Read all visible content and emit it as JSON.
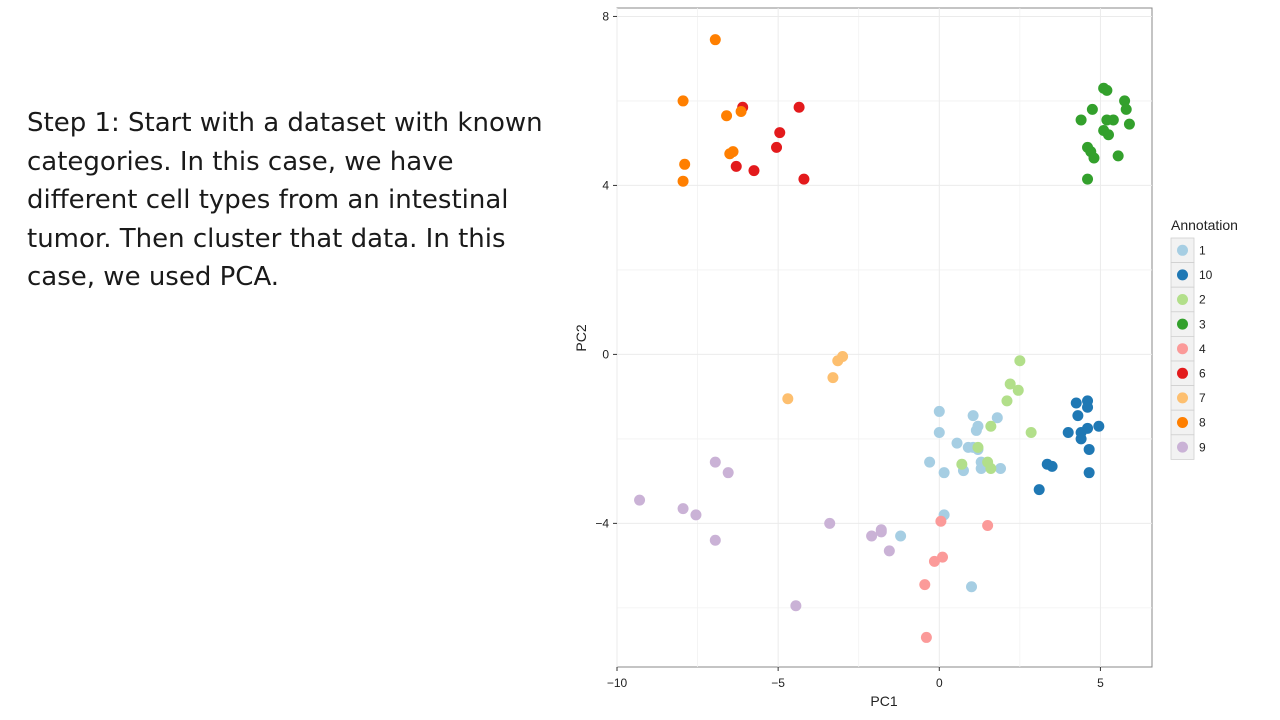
{
  "slide": {
    "text": "Step 1: Start with a dataset with known categories. In this case, we have different cell types from an intestinal tumor. Then cluster that data. In this case, we used PCA."
  },
  "chart_data": {
    "type": "scatter",
    "xlabel": "PC1",
    "ylabel": "PC2",
    "xlim": [
      -10,
      6.6
    ],
    "ylim": [
      -7.4,
      8.2
    ],
    "xticks": [
      -10,
      -5,
      0,
      5
    ],
    "yticks": [
      -4,
      0,
      4,
      8
    ],
    "xtick_labels": [
      "−10",
      "−5",
      "0",
      "5"
    ],
    "ytick_labels": [
      "−4",
      "0",
      "4",
      "8"
    ],
    "grid": true,
    "legend": {
      "title": "Annotation",
      "position": "right"
    },
    "series": [
      {
        "name": "1",
        "color": "#a6cee3",
        "points": [
          [
            0.0,
            -1.35
          ],
          [
            1.05,
            -1.45
          ],
          [
            1.2,
            -1.7
          ],
          [
            1.8,
            -1.5
          ],
          [
            0.0,
            -1.85
          ],
          [
            1.15,
            -1.8
          ],
          [
            0.55,
            -2.1
          ],
          [
            0.9,
            -2.2
          ],
          [
            1.05,
            -2.2
          ],
          [
            1.2,
            -2.25
          ],
          [
            -0.3,
            -2.55
          ],
          [
            1.3,
            -2.55
          ],
          [
            1.3,
            -2.7
          ],
          [
            1.9,
            -2.7
          ],
          [
            0.75,
            -2.75
          ],
          [
            0.15,
            -2.8
          ],
          [
            0.15,
            -3.8
          ],
          [
            -1.2,
            -4.3
          ],
          [
            1.0,
            -5.5
          ]
        ]
      },
      {
        "name": "10",
        "color": "#1f78b4",
        "points": [
          [
            4.25,
            -1.15
          ],
          [
            4.6,
            -1.1
          ],
          [
            4.6,
            -1.25
          ],
          [
            4.3,
            -1.45
          ],
          [
            4.0,
            -1.85
          ],
          [
            4.4,
            -1.85
          ],
          [
            4.6,
            -1.75
          ],
          [
            4.95,
            -1.7
          ],
          [
            4.4,
            -2.0
          ],
          [
            4.65,
            -2.25
          ],
          [
            3.35,
            -2.6
          ],
          [
            3.5,
            -2.65
          ],
          [
            4.65,
            -2.8
          ],
          [
            3.1,
            -3.2
          ]
        ]
      },
      {
        "name": "2",
        "color": "#b2df8a",
        "points": [
          [
            2.5,
            -0.15
          ],
          [
            2.2,
            -0.7
          ],
          [
            2.45,
            -0.85
          ],
          [
            2.1,
            -1.1
          ],
          [
            1.6,
            -1.7
          ],
          [
            2.85,
            -1.85
          ],
          [
            1.2,
            -2.2
          ],
          [
            0.7,
            -2.6
          ],
          [
            1.5,
            -2.55
          ],
          [
            1.6,
            -2.7
          ]
        ]
      },
      {
        "name": "3",
        "color": "#33a02c",
        "points": [
          [
            5.1,
            6.3
          ],
          [
            5.2,
            6.25
          ],
          [
            5.75,
            6.0
          ],
          [
            5.8,
            5.8
          ],
          [
            4.75,
            5.8
          ],
          [
            4.4,
            5.55
          ],
          [
            5.2,
            5.55
          ],
          [
            5.4,
            5.55
          ],
          [
            5.9,
            5.45
          ],
          [
            5.1,
            5.3
          ],
          [
            5.25,
            5.2
          ],
          [
            4.6,
            4.9
          ],
          [
            4.7,
            4.8
          ],
          [
            4.8,
            4.65
          ],
          [
            5.55,
            4.7
          ],
          [
            4.6,
            4.15
          ]
        ]
      },
      {
        "name": "4",
        "color": "#fb9a99",
        "points": [
          [
            0.05,
            -3.95
          ],
          [
            1.5,
            -4.05
          ],
          [
            0.1,
            -4.8
          ],
          [
            -0.15,
            -4.9
          ],
          [
            -0.45,
            -5.45
          ],
          [
            -0.4,
            -6.7
          ]
        ]
      },
      {
        "name": "6",
        "color": "#e31a1c",
        "points": [
          [
            -6.1,
            5.85
          ],
          [
            -4.35,
            5.85
          ],
          [
            -4.95,
            5.25
          ],
          [
            -5.05,
            4.9
          ],
          [
            -6.3,
            4.45
          ],
          [
            -5.75,
            4.35
          ],
          [
            -4.2,
            4.15
          ]
        ]
      },
      {
        "name": "7",
        "color": "#fdbf6f",
        "points": [
          [
            -3.0,
            -0.05
          ],
          [
            -3.15,
            -0.15
          ],
          [
            -3.3,
            -0.55
          ],
          [
            -4.7,
            -1.05
          ]
        ]
      },
      {
        "name": "8",
        "color": "#ff7f00",
        "points": [
          [
            -6.95,
            7.45
          ],
          [
            -7.95,
            6.0
          ],
          [
            -6.15,
            5.75
          ],
          [
            -6.6,
            5.65
          ],
          [
            -6.4,
            4.8
          ],
          [
            -6.5,
            4.75
          ],
          [
            -7.9,
            4.5
          ],
          [
            -7.95,
            4.1
          ]
        ]
      },
      {
        "name": "9",
        "color": "#cab2d6",
        "points": [
          [
            -6.95,
            -2.55
          ],
          [
            -6.55,
            -2.8
          ],
          [
            -9.3,
            -3.45
          ],
          [
            -7.95,
            -3.65
          ],
          [
            -7.55,
            -3.8
          ],
          [
            -6.95,
            -4.4
          ],
          [
            -3.4,
            -4.0
          ],
          [
            -1.8,
            -4.15
          ],
          [
            -1.8,
            -4.2
          ],
          [
            -2.1,
            -4.3
          ],
          [
            -1.55,
            -4.65
          ],
          [
            -4.45,
            -5.95
          ]
        ]
      }
    ]
  }
}
